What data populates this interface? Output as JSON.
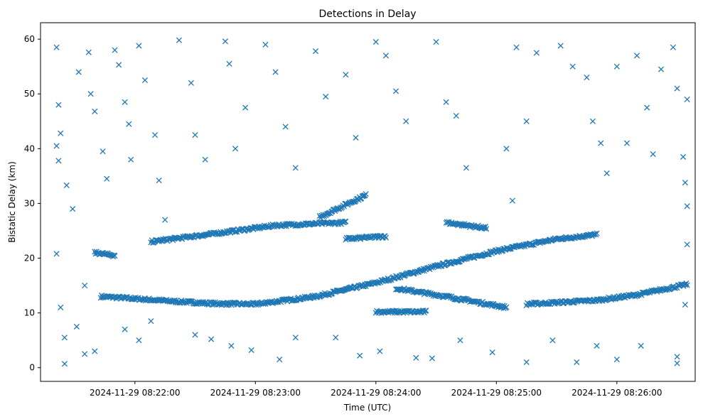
{
  "chart_data": {
    "type": "scatter",
    "title": "Detections in Delay",
    "xlabel": "Time (UTC)",
    "ylabel": "Bistatic Delay (km)",
    "marker": "x",
    "color": "#1f77b4",
    "grid": false,
    "legend": "none",
    "xlim": [
      "2024-11-29 08:21:13",
      "2024-11-29 08:26:39"
    ],
    "ylim": [
      -2.5,
      63
    ],
    "x_ticks": [
      "2024-11-29 08:22:00",
      "2024-11-29 08:23:00",
      "2024-11-29 08:24:00",
      "2024-11-29 08:25:00",
      "2024-11-29 08:26:00"
    ],
    "y_ticks": [
      0,
      10,
      20,
      30,
      40,
      50,
      60
    ],
    "tracks": [
      {
        "start": "2024-11-29 08:21:43",
        "end": "2024-11-29 08:23:00",
        "points": [
          [
            "2024-11-29 08:21:43",
            13.0
          ],
          [
            "2024-11-29 08:22:00",
            12.6
          ],
          [
            "2024-11-29 08:22:20",
            12.1
          ],
          [
            "2024-11-29 08:22:40",
            11.7
          ],
          [
            "2024-11-29 08:23:00",
            11.6
          ]
        ]
      },
      {
        "start": "2024-11-29 08:23:00",
        "end": "2024-11-29 08:25:50",
        "points": [
          [
            "2024-11-29 08:23:00",
            11.6
          ],
          [
            "2024-11-29 08:23:30",
            13.0
          ],
          [
            "2024-11-29 08:24:00",
            15.5
          ],
          [
            "2024-11-29 08:24:30",
            18.5
          ],
          [
            "2024-11-29 08:25:00",
            21.3
          ],
          [
            "2024-11-29 08:25:30",
            23.5
          ],
          [
            "2024-11-29 08:25:50",
            24.3
          ]
        ]
      },
      {
        "start": "2024-11-29 08:22:08",
        "end": "2024-11-29 08:23:45",
        "points": [
          [
            "2024-11-29 08:22:08",
            23.0
          ],
          [
            "2024-11-29 08:22:40",
            24.5
          ],
          [
            "2024-11-29 08:23:10",
            26.0
          ],
          [
            "2024-11-29 08:23:45",
            26.5
          ]
        ]
      },
      {
        "start": "2024-11-29 08:23:32",
        "end": "2024-11-29 08:23:55",
        "points": [
          [
            "2024-11-29 08:23:32",
            27.5
          ],
          [
            "2024-11-29 08:23:55",
            31.5
          ]
        ]
      },
      {
        "start": "2024-11-29 08:24:10",
        "end": "2024-11-29 08:25:05",
        "points": [
          [
            "2024-11-29 08:24:10",
            14.5
          ],
          [
            "2024-11-29 08:24:35",
            13.0
          ],
          [
            "2024-11-29 08:25:05",
            11.0
          ]
        ]
      },
      {
        "start": "2024-11-29 08:25:15",
        "end": "2024-11-29 08:26:35",
        "points": [
          [
            "2024-11-29 08:25:15",
            11.6
          ],
          [
            "2024-11-29 08:25:50",
            12.3
          ],
          [
            "2024-11-29 08:26:10",
            13.3
          ],
          [
            "2024-11-29 08:26:35",
            15.2
          ]
        ]
      },
      {
        "start": "2024-11-29 08:21:40",
        "end": "2024-11-29 08:21:50",
        "points": [
          [
            "2024-11-29 08:21:40",
            21.0
          ],
          [
            "2024-11-29 08:21:50",
            20.5
          ]
        ]
      },
      {
        "start": "2024-11-29 08:24:35",
        "end": "2024-11-29 08:24:55",
        "points": [
          [
            "2024-11-29 08:24:35",
            26.5
          ],
          [
            "2024-11-29 08:24:55",
            25.5
          ]
        ]
      },
      {
        "start": "2024-11-29 08:23:45",
        "end": "2024-11-29 08:24:05",
        "points": [
          [
            "2024-11-29 08:23:45",
            23.5
          ],
          [
            "2024-11-29 08:24:05",
            24.0
          ]
        ]
      },
      {
        "start": "2024-11-29 08:24:00",
        "end": "2024-11-29 08:24:25",
        "points": [
          [
            "2024-11-29 08:24:00",
            10.2
          ],
          [
            "2024-11-29 08:24:25",
            10.2
          ]
        ]
      }
    ],
    "scattered_points": [
      [
        "2024-11-29 08:21:21",
        58.5
      ],
      [
        "2024-11-29 08:21:22",
        48.0
      ],
      [
        "2024-11-29 08:21:23",
        42.8
      ],
      [
        "2024-11-29 08:21:21",
        40.5
      ],
      [
        "2024-11-29 08:21:22",
        37.8
      ],
      [
        "2024-11-29 08:21:21",
        20.8
      ],
      [
        "2024-11-29 08:21:23",
        11.0
      ],
      [
        "2024-11-29 08:21:25",
        5.5
      ],
      [
        "2024-11-29 08:21:25",
        0.7
      ],
      [
        "2024-11-29 08:21:26",
        33.3
      ],
      [
        "2024-11-29 08:21:29",
        29.0
      ],
      [
        "2024-11-29 08:21:32",
        54.0
      ],
      [
        "2024-11-29 08:21:37",
        57.6
      ],
      [
        "2024-11-29 08:21:38",
        50.0
      ],
      [
        "2024-11-29 08:21:40",
        46.8
      ],
      [
        "2024-11-29 08:21:44",
        39.5
      ],
      [
        "2024-11-29 08:21:46",
        34.5
      ],
      [
        "2024-11-29 08:21:35",
        15.0
      ],
      [
        "2024-11-29 08:21:31",
        7.5
      ],
      [
        "2024-11-29 08:21:35",
        2.5
      ],
      [
        "2024-11-29 08:21:40",
        3.0
      ],
      [
        "2024-11-29 08:21:50",
        58.0
      ],
      [
        "2024-11-29 08:21:52",
        55.3
      ],
      [
        "2024-11-29 08:21:55",
        48.5
      ],
      [
        "2024-11-29 08:21:57",
        44.5
      ],
      [
        "2024-11-29 08:21:58",
        38.0
      ],
      [
        "2024-11-29 08:22:02",
        58.8
      ],
      [
        "2024-11-29 08:22:05",
        52.5
      ],
      [
        "2024-11-29 08:22:10",
        42.5
      ],
      [
        "2024-11-29 08:22:12",
        34.2
      ],
      [
        "2024-11-29 08:22:15",
        27.0
      ],
      [
        "2024-11-29 08:21:55",
        7.0
      ],
      [
        "2024-11-29 08:22:02",
        5.0
      ],
      [
        "2024-11-29 08:22:08",
        8.5
      ],
      [
        "2024-11-29 08:22:22",
        59.8
      ],
      [
        "2024-11-29 08:22:28",
        52.0
      ],
      [
        "2024-11-29 08:22:30",
        42.5
      ],
      [
        "2024-11-29 08:22:35",
        38.0
      ],
      [
        "2024-11-29 08:22:30",
        6.0
      ],
      [
        "2024-11-29 08:22:38",
        5.2
      ],
      [
        "2024-11-29 08:22:45",
        59.6
      ],
      [
        "2024-11-29 08:22:47",
        55.5
      ],
      [
        "2024-11-29 08:22:55",
        47.5
      ],
      [
        "2024-11-29 08:22:50",
        40.0
      ],
      [
        "2024-11-29 08:22:48",
        4.0
      ],
      [
        "2024-11-29 08:22:58",
        3.2
      ],
      [
        "2024-11-29 08:23:05",
        59.0
      ],
      [
        "2024-11-29 08:23:10",
        54.0
      ],
      [
        "2024-11-29 08:23:15",
        44.0
      ],
      [
        "2024-11-29 08:23:20",
        36.5
      ],
      [
        "2024-11-29 08:23:12",
        1.5
      ],
      [
        "2024-11-29 08:23:20",
        5.5
      ],
      [
        "2024-11-29 08:23:30",
        57.8
      ],
      [
        "2024-11-29 08:23:35",
        49.5
      ],
      [
        "2024-11-29 08:23:45",
        53.5
      ],
      [
        "2024-11-29 08:23:50",
        42.0
      ],
      [
        "2024-11-29 08:23:40",
        5.5
      ],
      [
        "2024-11-29 08:23:52",
        2.2
      ],
      [
        "2024-11-29 08:24:00",
        59.5
      ],
      [
        "2024-11-29 08:24:05",
        57.0
      ],
      [
        "2024-11-29 08:24:10",
        50.5
      ],
      [
        "2024-11-29 08:24:15",
        45.0
      ],
      [
        "2024-11-29 08:24:02",
        3.0
      ],
      [
        "2024-11-29 08:24:20",
        1.8
      ],
      [
        "2024-11-29 08:24:30",
        59.5
      ],
      [
        "2024-11-29 08:24:35",
        48.5
      ],
      [
        "2024-11-29 08:24:40",
        46.0
      ],
      [
        "2024-11-29 08:24:45",
        36.5
      ],
      [
        "2024-11-29 08:24:28",
        1.7
      ],
      [
        "2024-11-29 08:24:42",
        5.0
      ],
      [
        "2024-11-29 08:24:58",
        2.8
      ],
      [
        "2024-11-29 08:25:05",
        40.0
      ],
      [
        "2024-11-29 08:25:08",
        30.5
      ],
      [
        "2024-11-29 08:25:10",
        58.5
      ],
      [
        "2024-11-29 08:25:15",
        45.0
      ],
      [
        "2024-11-29 08:25:20",
        57.5
      ],
      [
        "2024-11-29 08:25:15",
        1.0
      ],
      [
        "2024-11-29 08:25:28",
        5.0
      ],
      [
        "2024-11-29 08:25:32",
        58.8
      ],
      [
        "2024-11-29 08:25:38",
        55.0
      ],
      [
        "2024-11-29 08:25:40",
        1.0
      ],
      [
        "2024-11-29 08:25:45",
        53.0
      ],
      [
        "2024-11-29 08:25:48",
        45.0
      ],
      [
        "2024-11-29 08:25:52",
        41.0
      ],
      [
        "2024-11-29 08:25:55",
        35.5
      ],
      [
        "2024-11-29 08:25:50",
        4.0
      ],
      [
        "2024-11-29 08:26:00",
        55.0
      ],
      [
        "2024-11-29 08:26:05",
        41.0
      ],
      [
        "2024-11-29 08:26:00",
        1.5
      ],
      [
        "2024-11-29 08:26:10",
        57.0
      ],
      [
        "2024-11-29 08:26:15",
        47.5
      ],
      [
        "2024-11-29 08:26:18",
        39.0
      ],
      [
        "2024-11-29 08:26:12",
        4.0
      ],
      [
        "2024-11-29 08:26:22",
        54.5
      ],
      [
        "2024-11-29 08:26:28",
        58.5
      ],
      [
        "2024-11-29 08:26:30",
        51.0
      ],
      [
        "2024-11-29 08:26:33",
        38.5
      ],
      [
        "2024-11-29 08:26:34",
        33.8
      ],
      [
        "2024-11-29 08:26:35",
        29.5
      ],
      [
        "2024-11-29 08:26:35",
        49.0
      ],
      [
        "2024-11-29 08:26:30",
        2.0
      ],
      [
        "2024-11-29 08:26:30",
        0.8
      ],
      [
        "2024-11-29 08:26:35",
        22.5
      ],
      [
        "2024-11-29 08:26:34",
        11.5
      ]
    ]
  }
}
